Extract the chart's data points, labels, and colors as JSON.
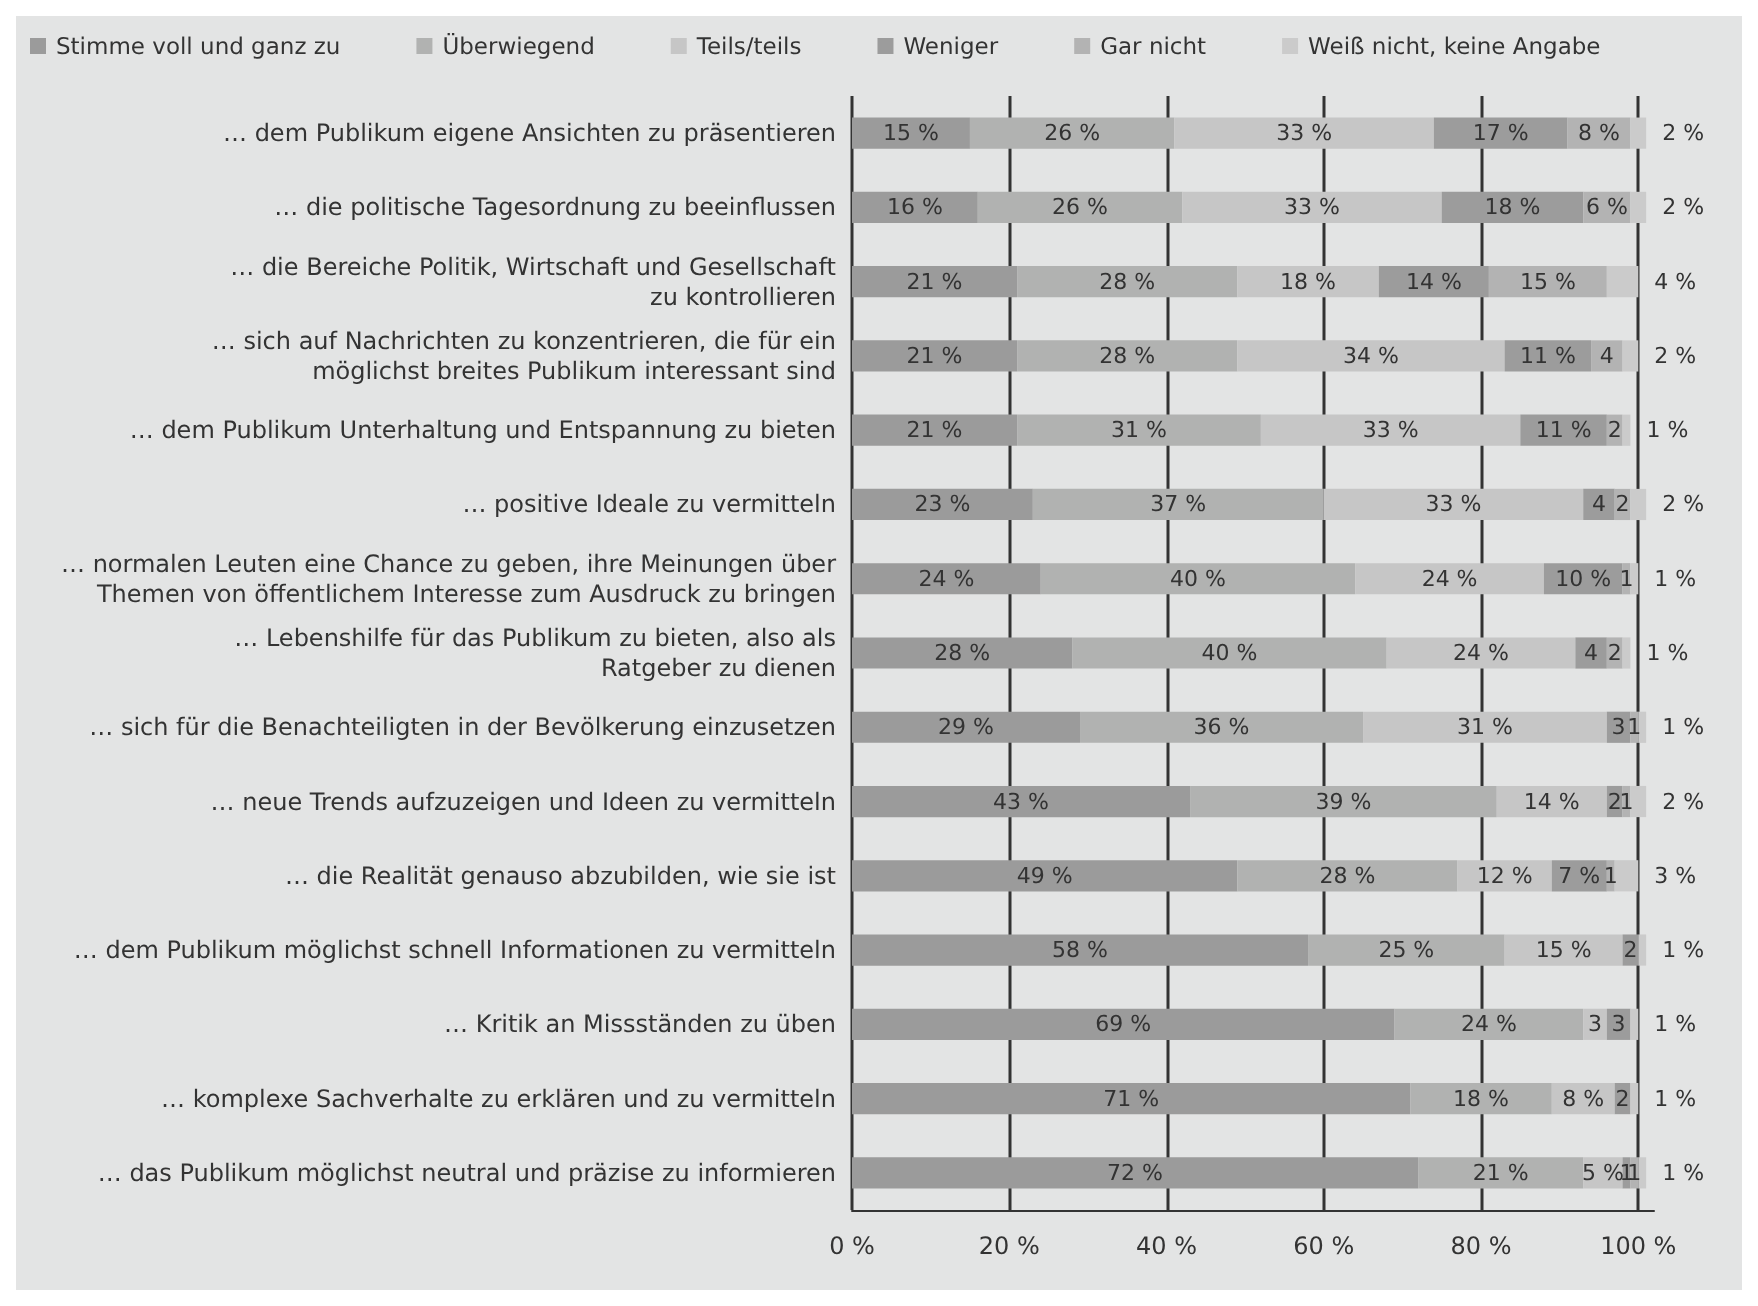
{
  "chart_data": {
    "type": "bar",
    "orientation": "horizontal",
    "stacked": true,
    "legend": "top",
    "grid": "x",
    "categories": [
      "… dem Publikum eigene Ansichten zu präsentieren",
      "… die politische Tagesordnung zu beeinflussen",
      "… die Bereiche Politik, Wirtschaft und Gesellschaft\nzu kontrollieren",
      "… sich auf Nachrichten zu konzentrieren, die für ein\nmöglichst breites Publikum interessant sind",
      "… dem Publikum Unterhaltung und Entspannung zu bieten",
      "… positive Ideale zu vermitteln",
      "… normalen Leuten eine Chance zu geben, ihre Meinungen über\nThemen von öffentlichem Interesse zum Ausdruck zu bringen",
      "… Lebenshilfe für das Publikum zu bieten, also als\nRatgeber zu dienen",
      "… sich für die Benachteiligten in der Bevölkerung einzusetzen",
      "… neue Trends aufzuzeigen und Ideen zu vermitteln",
      "… die Realität genauso abzubilden, wie sie ist",
      "… dem Publikum möglichst schnell Informationen zu vermitteln",
      "… Kritik an Missständen zu üben",
      "… komplexe Sachverhalte zu erklären und zu vermitteln",
      "… das Publikum möglichst neutral und präzise zu informieren"
    ],
    "xlim": [
      0,
      102
    ],
    "xticks": [
      {
        "value": 0,
        "label": "0 %"
      },
      {
        "value": 20,
        "label": "20 %"
      },
      {
        "value": 40,
        "label": "40 %"
      },
      {
        "value": 60,
        "label": "60 %"
      },
      {
        "value": 80,
        "label": "80 %"
      },
      {
        "value": 100,
        "label": "100 %"
      }
    ],
    "series": [
      {
        "name": "Stimme voll und ganz zu",
        "color": "#9b9b9b",
        "values": [
          15,
          16,
          21,
          21,
          21,
          23,
          24,
          28,
          29,
          43,
          49,
          58,
          69,
          71,
          72
        ],
        "value_labels": [
          "15 %",
          "16 %",
          "21 %",
          "21 %",
          "21 %",
          "23 %",
          "24 %",
          "28 %",
          "29 %",
          "43 %",
          "49 %",
          "58 %",
          "69 %",
          "71 %",
          "72 %"
        ]
      },
      {
        "name": "Überwiegend",
        "color": "#b1b2b1",
        "values": [
          26,
          26,
          28,
          28,
          31,
          37,
          40,
          40,
          36,
          39,
          28,
          25,
          24,
          18,
          21
        ],
        "value_labels": [
          "26 %",
          "26 %",
          "28 %",
          "28 %",
          "31 %",
          "37 %",
          "40 %",
          "40 %",
          "36 %",
          "39 %",
          "28 %",
          "25 %",
          "24 %",
          "18 %",
          "21 %"
        ]
      },
      {
        "name": "Teils/teils",
        "color": "#c6c6c6",
        "values": [
          33,
          33,
          18,
          34,
          33,
          33,
          24,
          24,
          31,
          14,
          12,
          15,
          3,
          8,
          5
        ],
        "value_labels": [
          "33 %",
          "33 %",
          "18 %",
          "34 %",
          "33 %",
          "33 %",
          "24 %",
          "24 %",
          "31 %",
          "14 %",
          "12 %",
          "15 %",
          "3",
          "8 %",
          "5 %"
        ]
      },
      {
        "name": "Weniger",
        "color": "#9c9c9c",
        "values": [
          17,
          18,
          14,
          11,
          11,
          4,
          10,
          4,
          3,
          2,
          7,
          2,
          3,
          2,
          1
        ],
        "value_labels": [
          "17 %",
          "18 %",
          "14 %",
          "11 %",
          "11 %",
          "4",
          "10 %",
          "4",
          "3",
          "2",
          "7 %",
          "2",
          "3",
          "2",
          "1"
        ]
      },
      {
        "name": "Gar nicht",
        "color": "#b3b3b3",
        "values": [
          8,
          6,
          15,
          4,
          2,
          2,
          1,
          2,
          1,
          1,
          1,
          0,
          0,
          0,
          1
        ],
        "value_labels": [
          "8 %",
          "6 %",
          "15 %",
          "4",
          "2",
          "2",
          "1",
          "2",
          "1",
          "1",
          "1",
          null,
          null,
          null,
          "1"
        ]
      },
      {
        "name": "Weiß nicht, keine Angabe",
        "color": "#cbcbcb",
        "values": [
          2,
          2,
          4,
          2,
          1,
          2,
          1,
          1,
          1,
          2,
          3,
          1,
          1,
          1,
          1
        ],
        "value_labels": [
          "2 %",
          "2 %",
          "4 %",
          "2 %",
          "1 %",
          "2 %",
          "1 %",
          "1 %",
          "1 %",
          "2 %",
          "3 %",
          "1 %",
          "1 %",
          "1 %",
          "1 %"
        ]
      }
    ]
  }
}
